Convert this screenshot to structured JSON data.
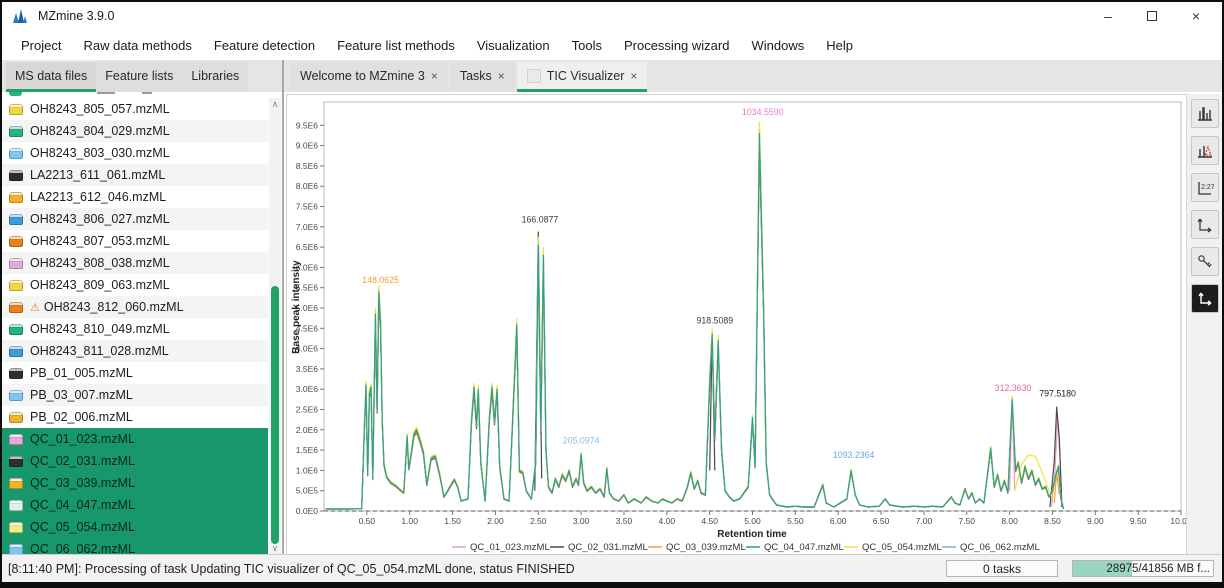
{
  "window": {
    "title": "MZmine 3.9.0",
    "minimize_label": "–",
    "close_label": "×"
  },
  "menu": {
    "items": [
      "Project",
      "Raw data methods",
      "Feature detection",
      "Feature list methods",
      "Visualization",
      "Tools",
      "Processing wizard",
      "Windows",
      "Help"
    ]
  },
  "sidebar": {
    "tabs": [
      {
        "label": "MS data files",
        "active": true
      },
      {
        "label": "Feature lists",
        "active": false
      },
      {
        "label": "Libraries",
        "active": false
      }
    ],
    "icon_colors": {
      "yellow": "#f3d840",
      "green": "#26b37c",
      "lightblue": "#7ec8ef",
      "black": "#2e2e2e",
      "amber": "#f0b42c",
      "blue": "#3f9ad8",
      "orange": "#e8821e",
      "pink": "#e9a8dc",
      "paleteal": "#def0e7",
      "paleyellow": "#f2ee86"
    },
    "files": [
      {
        "name": "OH8243_805_057.mzML",
        "color": "yellow",
        "selected": false,
        "warning": false
      },
      {
        "name": "OH8243_804_029.mzML",
        "color": "green",
        "selected": false,
        "warning": false
      },
      {
        "name": "OH8243_803_030.mzML",
        "color": "lightblue",
        "selected": false,
        "warning": false
      },
      {
        "name": "LA2213_611_061.mzML",
        "color": "black",
        "selected": false,
        "warning": false
      },
      {
        "name": "LA2213_612_046.mzML",
        "color": "amber",
        "selected": false,
        "warning": false
      },
      {
        "name": "OH8243_806_027.mzML",
        "color": "blue",
        "selected": false,
        "warning": false
      },
      {
        "name": "OH8243_807_053.mzML",
        "color": "orange",
        "selected": false,
        "warning": false
      },
      {
        "name": "OH8243_808_038.mzML",
        "color": "pink",
        "selected": false,
        "warning": false
      },
      {
        "name": "OH8243_809_063.mzML",
        "color": "yellow",
        "selected": false,
        "warning": false
      },
      {
        "name": "OH8243_812_060.mzML",
        "color": "orange",
        "selected": false,
        "warning": true
      },
      {
        "name": "OH8243_810_049.mzML",
        "color": "green",
        "selected": false,
        "warning": false
      },
      {
        "name": "OH8243_811_028.mzML",
        "color": "blue",
        "selected": false,
        "warning": false
      },
      {
        "name": "PB_01_005.mzML",
        "color": "black",
        "selected": false,
        "warning": false
      },
      {
        "name": "PB_03_007.mzML",
        "color": "lightblue",
        "selected": false,
        "warning": false
      },
      {
        "name": "PB_02_006.mzML",
        "color": "amber",
        "selected": false,
        "warning": false
      },
      {
        "name": "QC_01_023.mzML",
        "color": "pink",
        "selected": true,
        "warning": false
      },
      {
        "name": "QC_02_031.mzML",
        "color": "black",
        "selected": true,
        "warning": false
      },
      {
        "name": "QC_03_039.mzML",
        "color": "amber",
        "selected": true,
        "warning": false
      },
      {
        "name": "QC_04_047.mzML",
        "color": "paleteal",
        "selected": true,
        "warning": false
      },
      {
        "name": "QC_05_054.mzML",
        "color": "paleyellow",
        "selected": true,
        "warning": false
      },
      {
        "name": "QC_06_062.mzML",
        "color": "lightblue",
        "selected": true,
        "warning": false
      }
    ],
    "scroll": {
      "up": "∧",
      "down": "∨"
    }
  },
  "main": {
    "tabs": [
      {
        "label": "Welcome to MZmine 3",
        "close": "×",
        "active": false,
        "icon": false
      },
      {
        "label": "Tasks",
        "close": "×",
        "active": false,
        "icon": false
      },
      {
        "label": "TIC Visualizer",
        "close": "×",
        "active": true,
        "icon": true
      }
    ]
  },
  "toolbar": {
    "buttons": [
      "chromatogram-icon",
      "annotated-spectrum-icon",
      "tick-labels-icon",
      "axes-arrows-icon",
      "key-icon",
      "axes-reset-icon"
    ]
  },
  "chart_data": {
    "type": "line",
    "title": "",
    "xlabel": "Retention time",
    "ylabel": "Base peak intensity",
    "xlim": [
      0,
      10.05
    ],
    "ylim_E6": [
      0,
      10.1
    ],
    "grid": false,
    "legend_position": "bottom",
    "x_ticks": [
      0.5,
      1.0,
      1.5,
      2.0,
      2.5,
      3.0,
      3.5,
      4.0,
      4.5,
      5.0,
      5.5,
      6.0,
      6.5,
      7.0,
      7.5,
      8.0,
      8.5,
      9.0,
      9.5,
      10.0
    ],
    "y_tick_labels": [
      "0.0E0",
      "5.0E5",
      "1.0E6",
      "1.5E6",
      "2.0E6",
      "2.5E6",
      "3.0E6",
      "3.5E6",
      "4.0E6",
      "4.5E6",
      "5.0E6",
      "5.5E6",
      "6.0E6",
      "6.5E6",
      "7.0E6",
      "7.5E6",
      "8.0E6",
      "8.5E6",
      "9.0E6",
      "9.5E6"
    ],
    "series": [
      {
        "name": "QC_01_023.mzML",
        "color": "#e8a0c8",
        "scale": 0.96
      },
      {
        "name": "QC_02_031.mzML",
        "color": "#4a4a4a",
        "scale": 0.97
      },
      {
        "name": "QC_03_039.mzML",
        "color": "#f0a330",
        "scale": 0.985
      },
      {
        "name": "QC_06_062.mzML",
        "color": "#6ab4e4",
        "scale": 1.015
      },
      {
        "name": "QC_05_054.mzML",
        "color": "#f2e335",
        "scale": 1.03
      },
      {
        "name": "QC_04_047.mzML",
        "color": "#2fa187",
        "scale": 1.0
      }
    ],
    "legend_order": [
      "QC_01_023.mzML",
      "QC_02_031.mzML",
      "QC_03_039.mzML",
      "QC_04_047.mzML",
      "QC_05_054.mzML",
      "QC_06_062.mzML"
    ],
    "base_trace_rt_E6": [
      [
        0.02,
        0.05
      ],
      [
        0.3,
        0.05
      ],
      [
        0.44,
        0.06
      ],
      [
        0.47,
        2.0
      ],
      [
        0.49,
        3.1
      ],
      [
        0.51,
        0.9
      ],
      [
        0.53,
        2.9
      ],
      [
        0.55,
        3.05
      ],
      [
        0.57,
        0.8
      ],
      [
        0.6,
        4.85
      ],
      [
        0.62,
        2.5
      ],
      [
        0.64,
        5.4
      ],
      [
        0.66,
        4.6
      ],
      [
        0.68,
        2.2
      ],
      [
        0.7,
        1.15
      ],
      [
        0.73,
        0.85
      ],
      [
        0.78,
        0.7
      ],
      [
        0.84,
        0.62
      ],
      [
        0.9,
        0.5
      ],
      [
        0.93,
        0.45
      ],
      [
        0.95,
        1.1
      ],
      [
        0.97,
        1.85
      ],
      [
        0.99,
        1.05
      ],
      [
        1.02,
        1.45
      ],
      [
        1.05,
        1.9
      ],
      [
        1.08,
        2.0
      ],
      [
        1.12,
        1.75
      ],
      [
        1.16,
        1.45
      ],
      [
        1.2,
        0.65
      ],
      [
        1.25,
        1.3
      ],
      [
        1.3,
        1.35
      ],
      [
        1.35,
        0.9
      ],
      [
        1.4,
        0.35
      ],
      [
        1.47,
        0.6
      ],
      [
        1.52,
        0.78
      ],
      [
        1.56,
        0.6
      ],
      [
        1.6,
        0.25
      ],
      [
        1.68,
        0.3
      ],
      [
        1.72,
        2.2
      ],
      [
        1.75,
        3.05
      ],
      [
        1.78,
        2.1
      ],
      [
        1.8,
        3.0
      ],
      [
        1.83,
        1.2
      ],
      [
        1.88,
        0.25
      ],
      [
        1.93,
        2.3
      ],
      [
        1.96,
        3.05
      ],
      [
        1.99,
        2.2
      ],
      [
        2.02,
        3.0
      ],
      [
        2.05,
        1.1
      ],
      [
        2.1,
        0.3
      ],
      [
        2.16,
        0.25
      ],
      [
        2.22,
        3.2
      ],
      [
        2.25,
        4.6
      ],
      [
        2.28,
        1.0
      ],
      [
        2.32,
        0.95
      ],
      [
        2.36,
        0.5
      ],
      [
        2.42,
        0.3
      ],
      [
        2.47,
        1.2
      ],
      [
        2.5,
        6.55
      ],
      [
        2.53,
        2.0
      ],
      [
        2.56,
        6.3
      ],
      [
        2.59,
        1.5
      ],
      [
        2.62,
        0.6
      ],
      [
        2.66,
        0.45
      ],
      [
        2.7,
        0.8
      ],
      [
        2.74,
        0.6
      ],
      [
        2.78,
        0.9
      ],
      [
        2.82,
        0.75
      ],
      [
        2.86,
        1.0
      ],
      [
        2.9,
        0.6
      ],
      [
        2.94,
        0.8
      ],
      [
        2.97,
        0.65
      ],
      [
        3.0,
        1.4
      ],
      [
        3.03,
        0.7
      ],
      [
        3.07,
        0.5
      ],
      [
        3.12,
        0.6
      ],
      [
        3.17,
        0.45
      ],
      [
        3.22,
        0.55
      ],
      [
        3.27,
        0.35
      ],
      [
        3.3,
        1.05
      ],
      [
        3.33,
        0.45
      ],
      [
        3.38,
        0.3
      ],
      [
        3.44,
        0.25
      ],
      [
        3.5,
        0.4
      ],
      [
        3.55,
        0.2
      ],
      [
        3.62,
        0.3
      ],
      [
        3.7,
        0.2
      ],
      [
        3.76,
        0.35
      ],
      [
        3.82,
        0.25
      ],
      [
        3.9,
        0.2
      ],
      [
        3.95,
        0.3
      ],
      [
        4.0,
        0.25
      ],
      [
        4.06,
        0.2
      ],
      [
        4.12,
        0.3
      ],
      [
        4.18,
        0.25
      ],
      [
        4.24,
        0.6
      ],
      [
        4.28,
        0.95
      ],
      [
        4.32,
        0.55
      ],
      [
        4.36,
        0.75
      ],
      [
        4.4,
        0.45
      ],
      [
        4.45,
        0.4
      ],
      [
        4.5,
        3.2
      ],
      [
        4.53,
        4.35
      ],
      [
        4.56,
        1.8
      ],
      [
        4.6,
        4.2
      ],
      [
        4.64,
        1.5
      ],
      [
        4.68,
        0.5
      ],
      [
        4.73,
        0.35
      ],
      [
        4.78,
        0.25
      ],
      [
        4.85,
        0.3
      ],
      [
        4.95,
        0.6
      ],
      [
        5.0,
        2.3
      ],
      [
        5.03,
        1.1
      ],
      [
        5.08,
        9.3
      ],
      [
        5.13,
        5.0
      ],
      [
        5.16,
        1.2
      ],
      [
        5.2,
        0.4
      ],
      [
        5.28,
        0.15
      ],
      [
        5.4,
        0.1
      ],
      [
        5.5,
        0.12
      ],
      [
        5.6,
        0.1
      ],
      [
        5.72,
        0.1
      ],
      [
        5.82,
        0.65
      ],
      [
        5.86,
        0.2
      ],
      [
        5.95,
        0.1
      ],
      [
        6.1,
        0.3
      ],
      [
        6.15,
        1.0
      ],
      [
        6.2,
        0.4
      ],
      [
        6.25,
        0.15
      ],
      [
        6.35,
        0.1
      ],
      [
        6.48,
        0.12
      ],
      [
        6.55,
        0.3
      ],
      [
        6.6,
        0.15
      ],
      [
        6.75,
        0.1
      ],
      [
        6.9,
        0.12
      ],
      [
        7.0,
        0.1
      ],
      [
        7.1,
        0.12
      ],
      [
        7.22,
        0.1
      ],
      [
        7.32,
        0.35
      ],
      [
        7.36,
        0.2
      ],
      [
        7.42,
        0.15
      ],
      [
        7.48,
        0.55
      ],
      [
        7.52,
        0.3
      ],
      [
        7.56,
        0.45
      ],
      [
        7.6,
        0.2
      ],
      [
        7.65,
        0.3
      ],
      [
        7.7,
        0.2
      ],
      [
        7.78,
        1.55
      ],
      [
        7.82,
        0.6
      ],
      [
        7.86,
        0.9
      ],
      [
        7.9,
        0.5
      ],
      [
        7.94,
        0.75
      ],
      [
        7.98,
        0.45
      ],
      [
        8.03,
        2.75
      ],
      [
        8.07,
        1.0
      ],
      [
        8.1,
        1.2
      ],
      [
        8.14,
        0.7
      ],
      [
        8.18,
        1.1
      ],
      [
        8.22,
        0.8
      ],
      [
        8.26,
        1.0
      ],
      [
        8.3,
        0.65
      ],
      [
        8.34,
        0.8
      ],
      [
        8.38,
        0.55
      ],
      [
        8.42,
        0.6
      ],
      [
        8.46,
        0.35
      ],
      [
        8.5,
        0.5
      ],
      [
        8.54,
        0.9
      ],
      [
        8.57,
        1.1
      ],
      [
        8.6,
        0.3
      ],
      [
        8.63,
        0.05
      ]
    ],
    "extras": {
      "QC_02_031.mzML": [
        [
          [
            2.46,
            0.5
          ],
          [
            2.5,
            6.87
          ],
          [
            2.54,
            0.8
          ]
        ],
        [
          [
            4.5,
            1.0
          ],
          [
            4.53,
            4.42
          ],
          [
            4.56,
            1.0
          ]
        ],
        [
          [
            8.47,
            0.1
          ],
          [
            8.52,
            1.2
          ],
          [
            8.55,
            2.56
          ],
          [
            8.58,
            1.8
          ],
          [
            8.61,
            0.1
          ]
        ]
      ],
      "QC_01_023.mzML": [
        [
          [
            8.0,
            0.5
          ],
          [
            8.03,
            2.8
          ],
          [
            8.06,
            0.5
          ]
        ],
        [
          [
            8.49,
            0.1
          ],
          [
            8.53,
            1.0
          ],
          [
            8.56,
            2.3
          ],
          [
            8.59,
            1.2
          ],
          [
            8.61,
            0.08
          ]
        ]
      ],
      "QC_05_054.mzML": [
        [
          [
            8.06,
            0.5
          ],
          [
            8.14,
            1.15
          ],
          [
            8.22,
            1.38
          ],
          [
            8.3,
            1.35
          ],
          [
            8.38,
            0.95
          ],
          [
            8.45,
            0.55
          ],
          [
            8.5,
            0.3
          ]
        ]
      ],
      "QC_03_039.mzML": [
        [
          [
            8.52,
            0.2
          ],
          [
            8.55,
            0.95
          ],
          [
            8.58,
            0.4
          ]
        ]
      ]
    },
    "annotations": [
      {
        "text": "148.0625",
        "color": "#f0a32f",
        "rt": 0.66,
        "v_E6": 5.62
      },
      {
        "text": "166.0877",
        "color": "#3a3a3a",
        "rt": 2.52,
        "v_E6": 7.1
      },
      {
        "text": "1034.5590",
        "color": "#e97bcb",
        "rt": 5.12,
        "v_E6": 9.75
      },
      {
        "text": "918.5089",
        "color": "#3a3a3a",
        "rt": 4.56,
        "v_E6": 4.62
      },
      {
        "text": "205.0974",
        "color": "#85bde9",
        "rt": 3.0,
        "v_E6": 1.66
      },
      {
        "text": "1093.2364",
        "color": "#5fa8e8",
        "rt": 6.18,
        "v_E6": 1.3
      },
      {
        "text": "312.3630",
        "color": "#e4649f",
        "rt": 8.04,
        "v_E6": 2.95
      },
      {
        "text": "797.5180",
        "color": "#1a1a1a",
        "rt": 8.56,
        "v_E6": 2.82
      }
    ]
  },
  "statusbar": {
    "message": "[8:11:40 PM]: Processing of task Updating TIC visualizer of QC_05_054.mzML done, status FINISHED",
    "tasks": "0 tasks",
    "memory": "28975/41856 MB f...",
    "memory_fill_pct": 42,
    "memory_fill_color": "#9bd4bf"
  }
}
